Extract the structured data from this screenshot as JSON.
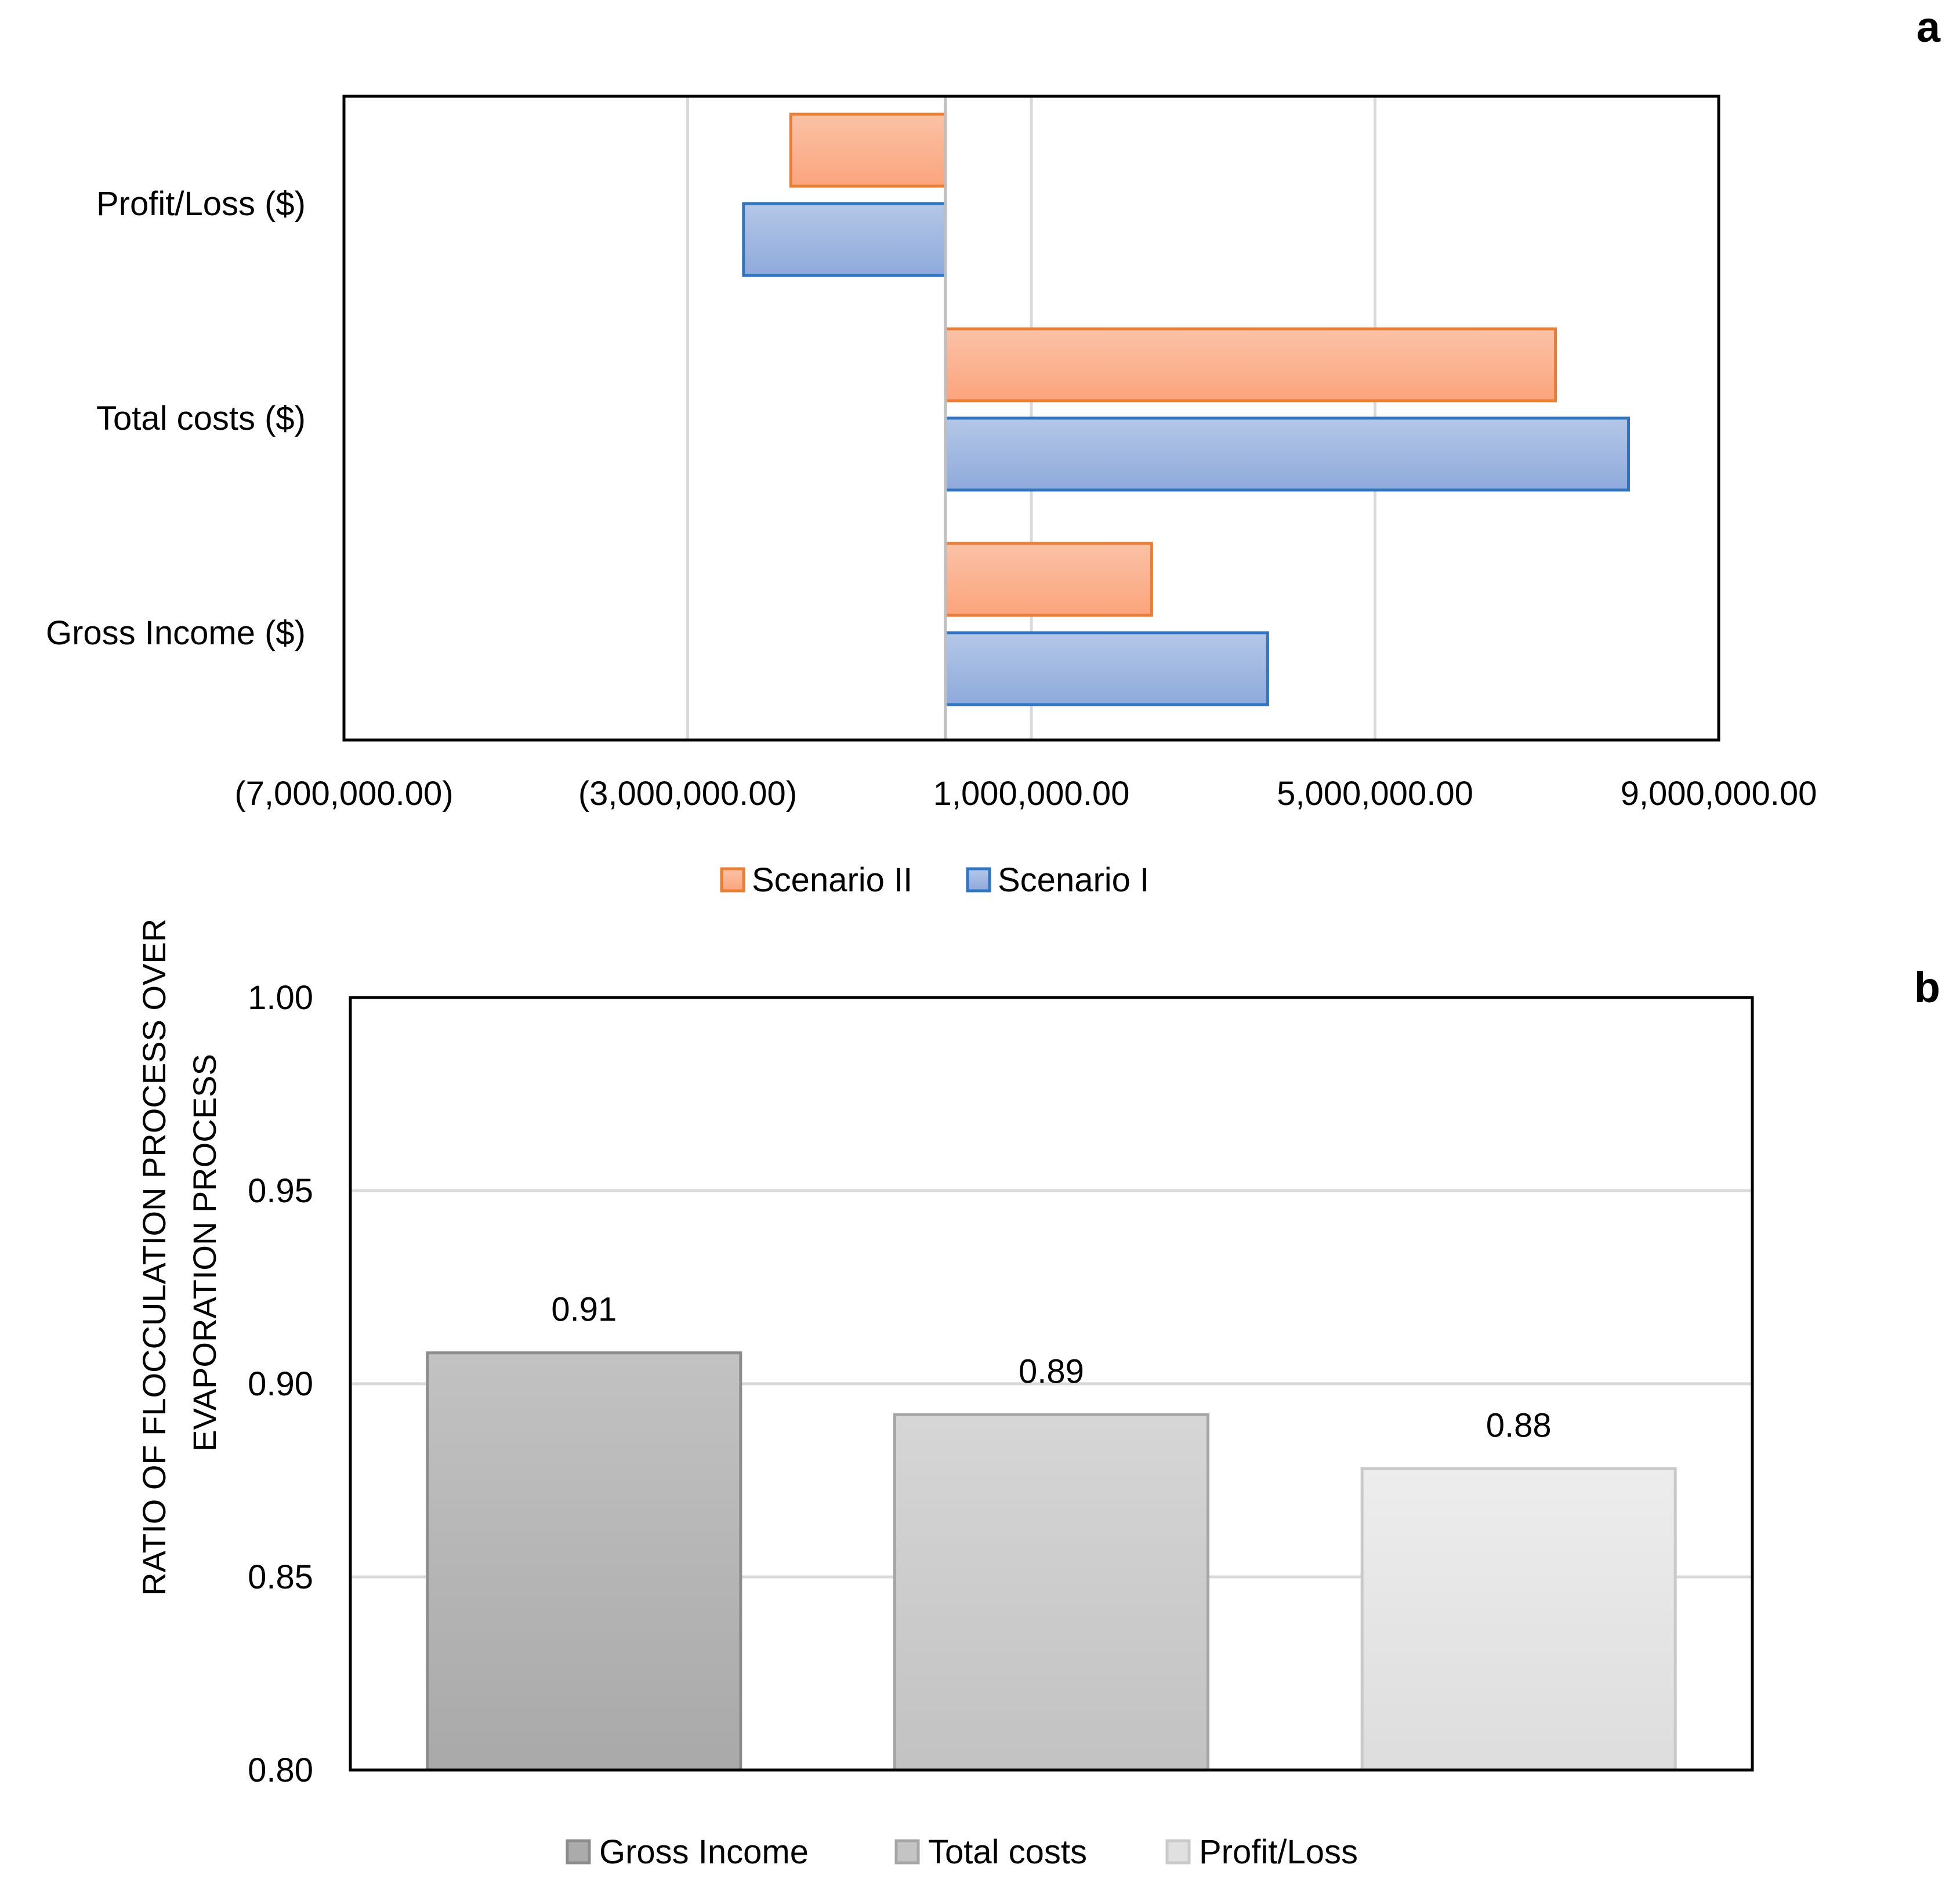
{
  "chart_data": [
    {
      "panel_label": "a",
      "type": "bar",
      "orientation": "horizontal",
      "categories": [
        "Profit/Loss ($)",
        "Total costs ($)",
        "Gross Income  ($)"
      ],
      "series": [
        {
          "name": "Scenario II",
          "values": [
            -1800000,
            7100000,
            2400000
          ],
          "color": "#ED7D31",
          "fill_light": "#FBC2A6",
          "fill_dark": "#FBA47C"
        },
        {
          "name": "Scenario I",
          "values": [
            -2350000,
            7950000,
            3750000
          ],
          "color": "#2E75C4",
          "fill_light": "#B4C7E7",
          "fill_dark": "#8EAADB"
        }
      ],
      "xlim": [
        -7000000,
        9000000
      ],
      "xticks": [
        -7000000,
        -3000000,
        1000000,
        5000000,
        9000000
      ],
      "xtick_labels": [
        "(7,000,000.00)",
        "(3,000,000.00)",
        "1,000,000.00",
        "5,000,000.00",
        "9,000,000.00"
      ],
      "title": "",
      "xlabel": "",
      "ylabel": "",
      "legend": "bottom",
      "legend_entries": [
        "Scenario II",
        "Scenario I"
      ],
      "grid": true
    },
    {
      "panel_label": "b",
      "type": "bar",
      "categories": [
        "Gross Income",
        "Total costs",
        "Profit/Loss"
      ],
      "values": [
        0.908,
        0.892,
        0.878
      ],
      "data_labels": [
        "0.91",
        "0.89",
        "0.88"
      ],
      "colors": [
        "#ABABAB",
        "#C4C4C4",
        "#E0E0E0"
      ],
      "ylim": [
        0.8,
        1.0
      ],
      "yticks": [
        0.8,
        0.85,
        0.9,
        0.95,
        1.0
      ],
      "ytick_labels": [
        "0.80",
        "0.85",
        "0.90",
        "0.95",
        "1.00"
      ],
      "ylabel_lines": [
        "RATIO OF FLOCCULATION PROCESS OVER",
        "EVAPORATION PROCESS"
      ],
      "title": "",
      "xlabel": "",
      "legend": "bottom",
      "legend_entries": [
        "Gross Income",
        "Total costs",
        "Profit/Loss"
      ],
      "grid": true
    }
  ]
}
